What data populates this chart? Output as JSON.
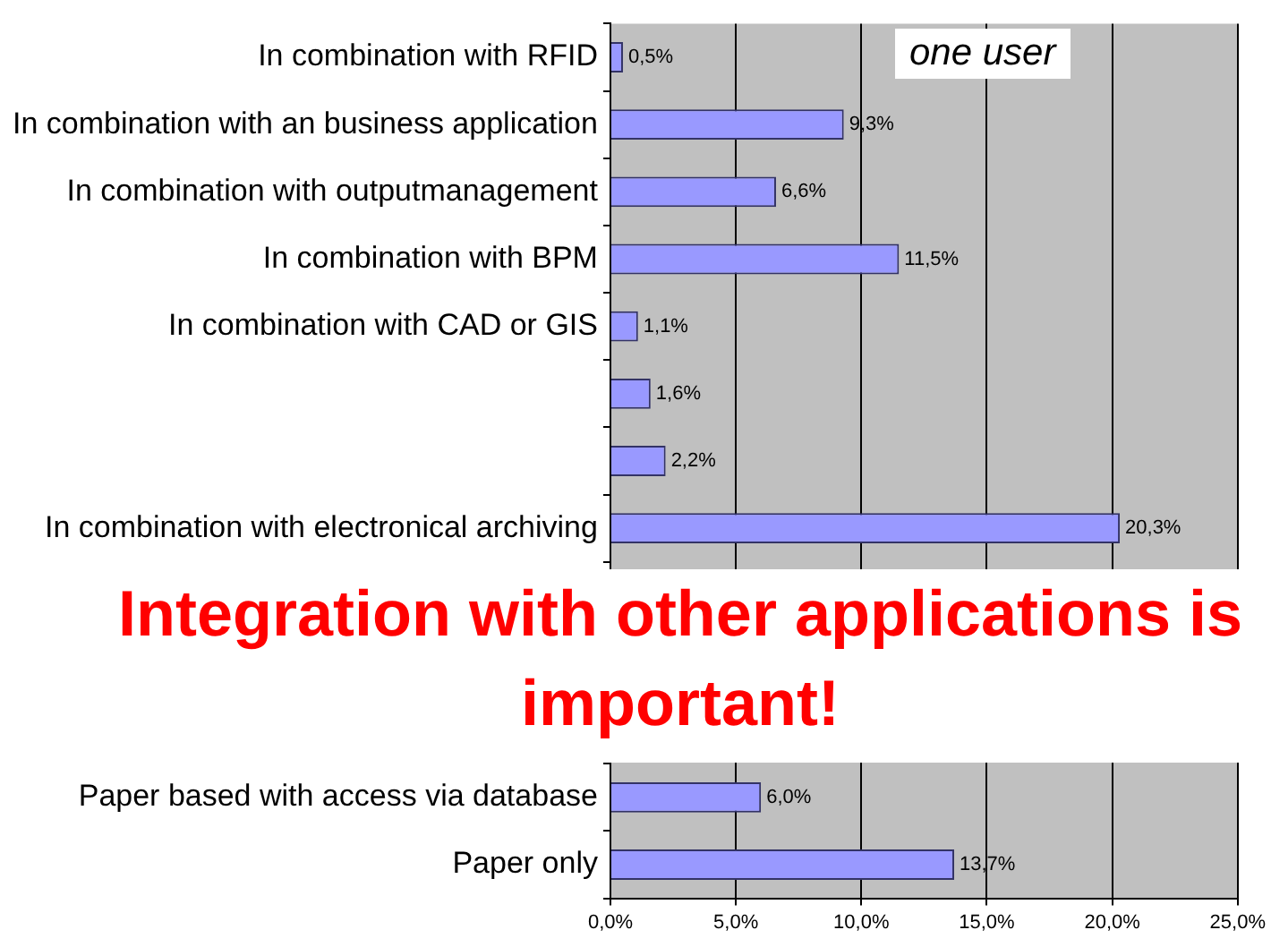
{
  "chart_data": {
    "type": "bar",
    "orientation": "horizontal",
    "categories": [
      "In combination with RFID",
      "In combination with an business application",
      "In combination with outputmanagement",
      "In combination with BPM",
      "In combination with CAD or GIS",
      null,
      null,
      "In combination with electronical archiving",
      null,
      null,
      null,
      "Paper based with access via database",
      "Paper only"
    ],
    "values": [
      0.5,
      9.3,
      6.6,
      11.5,
      1.1,
      1.6,
      2.2,
      20.3,
      null,
      null,
      null,
      6.0,
      13.7
    ],
    "value_labels": [
      "0,5%",
      "9,3%",
      "6,6%",
      "11,5%",
      "1,1%",
      "1,6%",
      "2,2%",
      "20,3%",
      null,
      null,
      null,
      "6,0%",
      "13,7%"
    ],
    "color": "#9999ff",
    "xlim": [
      0,
      25
    ],
    "xticks": [
      {
        "value": 0,
        "label": "0,0%"
      },
      {
        "value": 5,
        "label": "5,0%"
      },
      {
        "value": 10,
        "label": "10,0%"
      },
      {
        "value": 15,
        "label": "15,0%"
      },
      {
        "value": 20,
        "label": "20,0%"
      },
      {
        "value": 25,
        "label": "25,0%"
      }
    ],
    "grid": "x",
    "annotations": [
      "one user",
      "Integration with other applications is important!"
    ]
  }
}
